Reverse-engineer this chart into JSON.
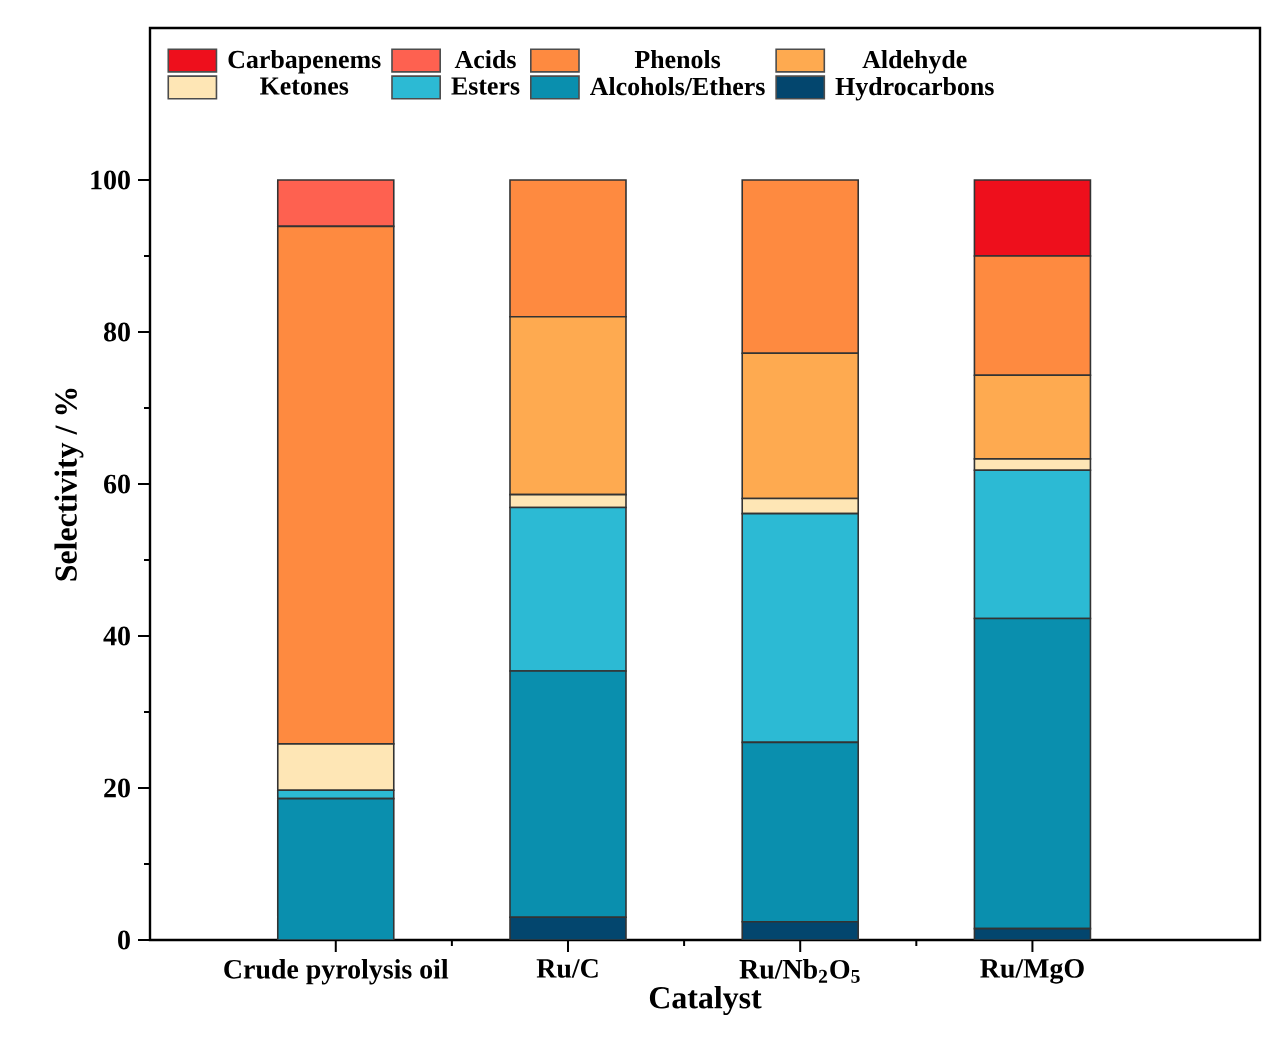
{
  "chart_data": {
    "type": "bar",
    "stacked": true,
    "xlabel": "Catalyst",
    "ylabel": "Selectivity / %",
    "categories": [
      "Crude pyrolysis oil",
      "Ru/C",
      "Ru/Nb$_{2}$O$_{5}$",
      "Ru/MgO"
    ],
    "ylim": [
      0,
      120
    ],
    "yticks": [
      0,
      20,
      40,
      60,
      80,
      100
    ],
    "legend": "top",
    "grid": false,
    "series": [
      {
        "name": "Hydrocarbons",
        "color": "#03466e",
        "values": [
          0,
          3.0,
          2.4,
          1.5
        ]
      },
      {
        "name": "Alcohols/Ethers",
        "color": "#0a8fae",
        "values": [
          18.6,
          32.4,
          23.6,
          40.8
        ]
      },
      {
        "name": "Esters",
        "color": "#2cbad4",
        "values": [
          1.1,
          21.5,
          30.1,
          19.5
        ]
      },
      {
        "name": "Ketones",
        "color": "#fee6b5",
        "values": [
          6.1,
          1.7,
          2.0,
          1.5
        ]
      },
      {
        "name": "Aldehyde",
        "color": "#feaa50",
        "values": [
          0,
          23.4,
          19.1,
          11.0
        ]
      },
      {
        "name": "Phenols",
        "color": "#fe8a40",
        "values": [
          68.1,
          18.0,
          22.8,
          15.7
        ]
      },
      {
        "name": "Acids",
        "color": "#fe6150",
        "values": [
          6.1,
          0,
          0,
          0
        ]
      },
      {
        "name": "Carbapenems",
        "color": "#ee0f1c",
        "values": [
          0,
          0,
          0,
          10.0
        ]
      }
    ]
  }
}
